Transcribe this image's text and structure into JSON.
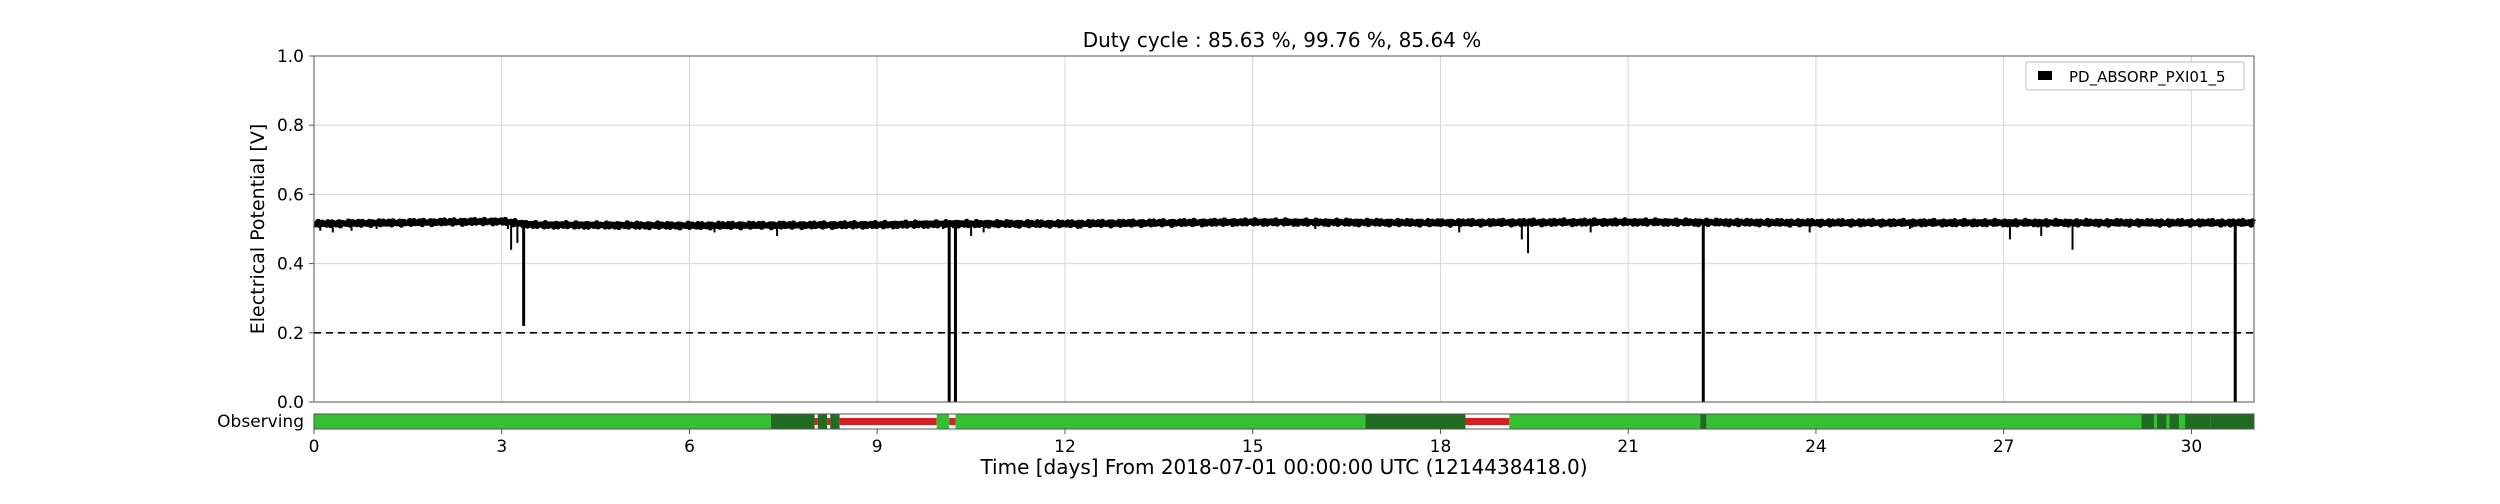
{
  "chart_data": {
    "type": "line",
    "title": "Duty cycle : 85.63 %, 99.76 %, 85.64 %",
    "xlabel": "Time [days] From 2018-07-01 00:00:00 UTC (1214438418.0)",
    "ylabel": "Electrical Potential [V]",
    "xlim": [
      0,
      31
    ],
    "ylim": [
      0,
      1.0
    ],
    "xticks": [
      0,
      3,
      6,
      9,
      12,
      15,
      18,
      21,
      24,
      27,
      30
    ],
    "yticks": [
      0.0,
      0.2,
      0.4,
      0.6,
      0.8,
      1.0
    ],
    "grid": true,
    "legend": {
      "placement": "top-right",
      "entries": [
        "PD_ABSORP_PXI01_5"
      ]
    },
    "threshold": {
      "value": 0.2,
      "style": "dashed",
      "color": "#000000"
    },
    "series": [
      {
        "name": "PD_ABSORP_PXI01_5",
        "color": "#000000",
        "baseline": [
          [
            0,
            0.515
          ],
          [
            3,
            0.522
          ],
          [
            3.5,
            0.512
          ],
          [
            6,
            0.51
          ],
          [
            9,
            0.512
          ],
          [
            10.2,
            0.515
          ],
          [
            12,
            0.515
          ],
          [
            15,
            0.52
          ],
          [
            18,
            0.518
          ],
          [
            21,
            0.52
          ],
          [
            24,
            0.518
          ],
          [
            27,
            0.518
          ],
          [
            31,
            0.518
          ]
        ],
        "dips": [
          {
            "x": 0.1,
            "y": 0.495
          },
          {
            "x": 0.3,
            "y": 0.49
          },
          {
            "x": 0.6,
            "y": 0.495
          },
          {
            "x": 1.0,
            "y": 0.5
          },
          {
            "x": 3.1,
            "y": 0.5
          },
          {
            "x": 3.15,
            "y": 0.44
          },
          {
            "x": 3.25,
            "y": 0.46
          },
          {
            "x": 3.35,
            "y": 0.22
          },
          {
            "x": 4.3,
            "y": 0.5
          },
          {
            "x": 6.4,
            "y": 0.49
          },
          {
            "x": 7.4,
            "y": 0.48
          },
          {
            "x": 8.3,
            "y": 0.5
          },
          {
            "x": 10.05,
            "y": 0.5
          },
          {
            "x": 10.15,
            "y": 0.0
          },
          {
            "x": 10.25,
            "y": 0.0
          },
          {
            "x": 10.5,
            "y": 0.48
          },
          {
            "x": 10.7,
            "y": 0.49
          },
          {
            "x": 12.2,
            "y": 0.5
          },
          {
            "x": 16.0,
            "y": 0.5
          },
          {
            "x": 18.3,
            "y": 0.49
          },
          {
            "x": 19.3,
            "y": 0.47
          },
          {
            "x": 19.4,
            "y": 0.43
          },
          {
            "x": 20.4,
            "y": 0.49
          },
          {
            "x": 22.2,
            "y": 0.0
          },
          {
            "x": 23.9,
            "y": 0.49
          },
          {
            "x": 25.5,
            "y": 0.5
          },
          {
            "x": 27.1,
            "y": 0.47
          },
          {
            "x": 27.6,
            "y": 0.48
          },
          {
            "x": 28.1,
            "y": 0.44
          },
          {
            "x": 30.7,
            "y": 0.0
          }
        ]
      }
    ],
    "state_bar": {
      "label": "Observing",
      "colors": {
        "observing": "#33c133",
        "partial": "#1f6b1f",
        "off": "#d42020"
      },
      "segments": [
        {
          "start": 0,
          "end": 7.3,
          "state": "observing"
        },
        {
          "start": 7.3,
          "end": 8.35,
          "state": "partial"
        },
        {
          "start": 8.0,
          "end": 8.05,
          "state": "off"
        },
        {
          "start": 8.2,
          "end": 8.25,
          "state": "off"
        },
        {
          "start": 8.4,
          "end": 8.45,
          "state": "off"
        },
        {
          "start": 8.35,
          "end": 8.4,
          "state": "partial"
        },
        {
          "start": 8.4,
          "end": 9.95,
          "state": "off"
        },
        {
          "start": 9.95,
          "end": 10.15,
          "state": "observing"
        },
        {
          "start": 10.15,
          "end": 10.25,
          "state": "off"
        },
        {
          "start": 10.25,
          "end": 16.8,
          "state": "observing"
        },
        {
          "start": 16.8,
          "end": 18.4,
          "state": "partial"
        },
        {
          "start": 18.4,
          "end": 19.1,
          "state": "off"
        },
        {
          "start": 19.1,
          "end": 22.15,
          "state": "observing"
        },
        {
          "start": 22.15,
          "end": 22.25,
          "state": "partial"
        },
        {
          "start": 22.25,
          "end": 29.2,
          "state": "observing"
        },
        {
          "start": 29.2,
          "end": 30.3,
          "state": "partial"
        },
        {
          "start": 29.4,
          "end": 29.45,
          "state": "observing"
        },
        {
          "start": 29.6,
          "end": 29.65,
          "state": "observing"
        },
        {
          "start": 29.8,
          "end": 29.9,
          "state": "observing"
        },
        {
          "start": 30.3,
          "end": 31,
          "state": "partial"
        }
      ]
    }
  }
}
